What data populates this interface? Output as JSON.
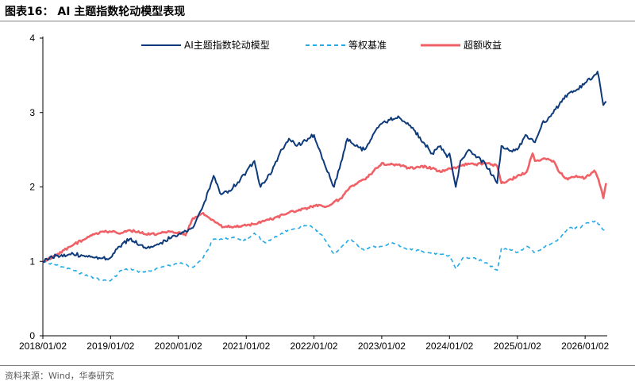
{
  "figure": {
    "title": "图表16： AI 主题指数轮动模型表现",
    "source": "资料来源：Wind，华泰研究"
  },
  "chart_data": {
    "type": "line",
    "title": "",
    "xlabel": "",
    "ylabel": "",
    "xlim": [
      "2018/01/02",
      "2026/05/01"
    ],
    "ylim": [
      0,
      4
    ],
    "yticks": [
      0,
      1,
      2,
      3,
      4
    ],
    "xtick_labels": [
      "2018/01/02",
      "2019/01/02",
      "2020/01/02",
      "2021/01/02",
      "2022/01/02",
      "2023/01/02",
      "2024/01/02",
      "2025/01/02",
      "2026/01/02"
    ],
    "grid": false,
    "legend": "top-center",
    "series": [
      {
        "name": "AI主题指数轮动模型",
        "color": "#0d3a7a",
        "style": "solid",
        "points": [
          [
            "2018/01/02",
            1.0
          ],
          [
            "2018/03/15",
            1.08
          ],
          [
            "2018/06/15",
            1.1
          ],
          [
            "2018/09/01",
            1.06
          ],
          [
            "2018/11/15",
            1.04
          ],
          [
            "2019/01/02",
            1.05
          ],
          [
            "2019/02/20",
            1.2
          ],
          [
            "2019/04/15",
            1.3
          ],
          [
            "2019/06/15",
            1.22
          ],
          [
            "2019/08/01",
            1.18
          ],
          [
            "2019/10/01",
            1.25
          ],
          [
            "2019/12/01",
            1.34
          ],
          [
            "2020/01/02",
            1.36
          ],
          [
            "2020/02/20",
            1.4
          ],
          [
            "2020/03/20",
            1.45
          ],
          [
            "2020/05/15",
            1.75
          ],
          [
            "2020/07/10",
            2.15
          ],
          [
            "2020/08/20",
            1.9
          ],
          [
            "2020/10/01",
            1.95
          ],
          [
            "2020/12/01",
            2.1
          ],
          [
            "2021/01/02",
            2.2
          ],
          [
            "2021/02/15",
            2.35
          ],
          [
            "2021/03/20",
            2.0
          ],
          [
            "2021/05/20",
            2.2
          ],
          [
            "2021/07/01",
            2.45
          ],
          [
            "2021/08/20",
            2.65
          ],
          [
            "2021/10/01",
            2.55
          ],
          [
            "2021/12/01",
            2.65
          ],
          [
            "2022/01/02",
            2.7
          ],
          [
            "2022/02/01",
            2.5
          ],
          [
            "2022/03/01",
            2.3
          ],
          [
            "2022/04/20",
            2.0
          ],
          [
            "2022/05/20",
            2.25
          ],
          [
            "2022/07/01",
            2.65
          ],
          [
            "2022/08/15",
            2.55
          ],
          [
            "2022/09/30",
            2.5
          ],
          [
            "2022/11/15",
            2.7
          ],
          [
            "2022/12/15",
            2.8
          ],
          [
            "2023/01/02",
            2.85
          ],
          [
            "2023/02/15",
            2.9
          ],
          [
            "2023/04/01",
            2.95
          ],
          [
            "2023/05/15",
            2.85
          ],
          [
            "2023/07/01",
            2.75
          ],
          [
            "2023/08/15",
            2.6
          ],
          [
            "2023/10/01",
            2.45
          ],
          [
            "2023/11/15",
            2.55
          ],
          [
            "2023/12/20",
            2.4
          ],
          [
            "2024/01/02",
            2.45
          ],
          [
            "2024/02/05",
            2.0
          ],
          [
            "2024/03/01",
            2.35
          ],
          [
            "2024/04/15",
            2.5
          ],
          [
            "2024/06/01",
            2.4
          ],
          [
            "2024/07/15",
            2.3
          ],
          [
            "2024/09/15",
            2.05
          ],
          [
            "2024/10/08",
            2.55
          ],
          [
            "2024/11/15",
            2.5
          ],
          [
            "2025/01/02",
            2.5
          ],
          [
            "2025/02/15",
            2.7
          ],
          [
            "2025/04/07",
            2.6
          ],
          [
            "2025/05/15",
            2.85
          ],
          [
            "2025/07/01",
            2.95
          ],
          [
            "2025/08/15",
            3.1
          ],
          [
            "2025/10/01",
            3.25
          ],
          [
            "2025/11/15",
            3.3
          ],
          [
            "2026/01/02",
            3.4
          ],
          [
            "2026/02/20",
            3.5
          ],
          [
            "2026/03/10",
            3.55
          ],
          [
            "2026/03/25",
            3.35
          ],
          [
            "2026/04/10",
            3.1
          ],
          [
            "2026/04/25",
            3.15
          ]
        ]
      },
      {
        "name": "等权基准",
        "color": "#22aae6",
        "style": "dashed",
        "points": [
          [
            "2018/01/02",
            1.0
          ],
          [
            "2018/03/15",
            0.95
          ],
          [
            "2018/06/15",
            0.88
          ],
          [
            "2018/09/01",
            0.8
          ],
          [
            "2018/11/15",
            0.75
          ],
          [
            "2019/01/02",
            0.74
          ],
          [
            "2019/03/01",
            0.88
          ],
          [
            "2019/04/15",
            0.9
          ],
          [
            "2019/06/15",
            0.85
          ],
          [
            "2019/08/01",
            0.87
          ],
          [
            "2019/10/01",
            0.92
          ],
          [
            "2019/12/01",
            0.95
          ],
          [
            "2020/01/02",
            0.98
          ],
          [
            "2020/03/20",
            0.92
          ],
          [
            "2020/05/15",
            1.05
          ],
          [
            "2020/07/10",
            1.3
          ],
          [
            "2020/09/01",
            1.3
          ],
          [
            "2020/11/01",
            1.32
          ],
          [
            "2021/01/02",
            1.28
          ],
          [
            "2021/02/15",
            1.38
          ],
          [
            "2021/04/15",
            1.25
          ],
          [
            "2021/06/01",
            1.32
          ],
          [
            "2021/08/15",
            1.42
          ],
          [
            "2021/10/01",
            1.45
          ],
          [
            "2021/12/01",
            1.48
          ],
          [
            "2022/01/02",
            1.45
          ],
          [
            "2022/02/15",
            1.35
          ],
          [
            "2022/04/20",
            1.1
          ],
          [
            "2022/06/01",
            1.2
          ],
          [
            "2022/07/15",
            1.3
          ],
          [
            "2022/09/30",
            1.15
          ],
          [
            "2022/11/15",
            1.2
          ],
          [
            "2023/01/02",
            1.2
          ],
          [
            "2023/03/01",
            1.25
          ],
          [
            "2023/05/01",
            1.18
          ],
          [
            "2023/07/01",
            1.15
          ],
          [
            "2023/09/01",
            1.12
          ],
          [
            "2023/11/01",
            1.1
          ],
          [
            "2024/01/02",
            1.08
          ],
          [
            "2024/02/05",
            0.9
          ],
          [
            "2024/03/15",
            1.05
          ],
          [
            "2024/05/15",
            1.05
          ],
          [
            "2024/07/15",
            0.98
          ],
          [
            "2024/09/15",
            0.88
          ],
          [
            "2024/10/08",
            1.18
          ],
          [
            "2024/12/01",
            1.15
          ],
          [
            "2025/01/02",
            1.12
          ],
          [
            "2025/02/20",
            1.2
          ],
          [
            "2025/04/07",
            1.12
          ],
          [
            "2025/06/01",
            1.2
          ],
          [
            "2025/08/15",
            1.3
          ],
          [
            "2025/10/01",
            1.45
          ],
          [
            "2025/12/01",
            1.45
          ],
          [
            "2026/01/15",
            1.52
          ],
          [
            "2026/03/01",
            1.55
          ],
          [
            "2026/04/01",
            1.45
          ],
          [
            "2026/04/25",
            1.4
          ]
        ]
      },
      {
        "name": "超额收益",
        "color": "#ef6166",
        "style": "solid",
        "points": [
          [
            "2018/01/02",
            1.0
          ],
          [
            "2018/03/15",
            1.08
          ],
          [
            "2018/06/15",
            1.22
          ],
          [
            "2018/09/01",
            1.33
          ],
          [
            "2018/11/15",
            1.4
          ],
          [
            "2019/01/02",
            1.4
          ],
          [
            "2019/03/01",
            1.38
          ],
          [
            "2019/04/15",
            1.42
          ],
          [
            "2019/06/15",
            1.38
          ],
          [
            "2019/08/01",
            1.36
          ],
          [
            "2019/10/01",
            1.38
          ],
          [
            "2019/12/01",
            1.4
          ],
          [
            "2020/01/02",
            1.39
          ],
          [
            "2020/02/10",
            1.35
          ],
          [
            "2020/03/20",
            1.58
          ],
          [
            "2020/05/15",
            1.65
          ],
          [
            "2020/07/10",
            1.55
          ],
          [
            "2020/09/01",
            1.46
          ],
          [
            "2020/11/01",
            1.47
          ],
          [
            "2021/01/02",
            1.48
          ],
          [
            "2021/02/15",
            1.5
          ],
          [
            "2021/04/15",
            1.55
          ],
          [
            "2021/06/01",
            1.58
          ],
          [
            "2021/08/15",
            1.65
          ],
          [
            "2021/10/01",
            1.68
          ],
          [
            "2021/12/01",
            1.72
          ],
          [
            "2022/01/02",
            1.75
          ],
          [
            "2022/03/15",
            1.74
          ],
          [
            "2022/04/20",
            1.8
          ],
          [
            "2022/06/01",
            1.85
          ],
          [
            "2022/07/15",
            2.0
          ],
          [
            "2022/09/30",
            2.1
          ],
          [
            "2022/11/15",
            2.2
          ],
          [
            "2023/01/02",
            2.32
          ],
          [
            "2023/02/15",
            2.3
          ],
          [
            "2023/04/01",
            2.3
          ],
          [
            "2023/06/01",
            2.25
          ],
          [
            "2023/08/01",
            2.28
          ],
          [
            "2023/10/01",
            2.25
          ],
          [
            "2023/11/15",
            2.2
          ],
          [
            "2024/01/02",
            2.25
          ],
          [
            "2024/02/05",
            2.25
          ],
          [
            "2024/03/15",
            2.3
          ],
          [
            "2024/05/15",
            2.3
          ],
          [
            "2024/07/15",
            2.32
          ],
          [
            "2024/09/15",
            2.28
          ],
          [
            "2024/10/08",
            2.05
          ],
          [
            "2024/12/01",
            2.1
          ],
          [
            "2025/01/02",
            2.15
          ],
          [
            "2025/02/20",
            2.2
          ],
          [
            "2025/03/25",
            2.45
          ],
          [
            "2025/04/07",
            2.35
          ],
          [
            "2025/06/01",
            2.38
          ],
          [
            "2025/07/15",
            2.35
          ],
          [
            "2025/08/15",
            2.2
          ],
          [
            "2025/10/01",
            2.1
          ],
          [
            "2025/11/15",
            2.15
          ],
          [
            "2026/01/02",
            2.12
          ],
          [
            "2026/02/20",
            2.22
          ],
          [
            "2026/03/15",
            2.1
          ],
          [
            "2026/04/10",
            1.85
          ],
          [
            "2026/04/25",
            2.05
          ]
        ]
      }
    ]
  }
}
